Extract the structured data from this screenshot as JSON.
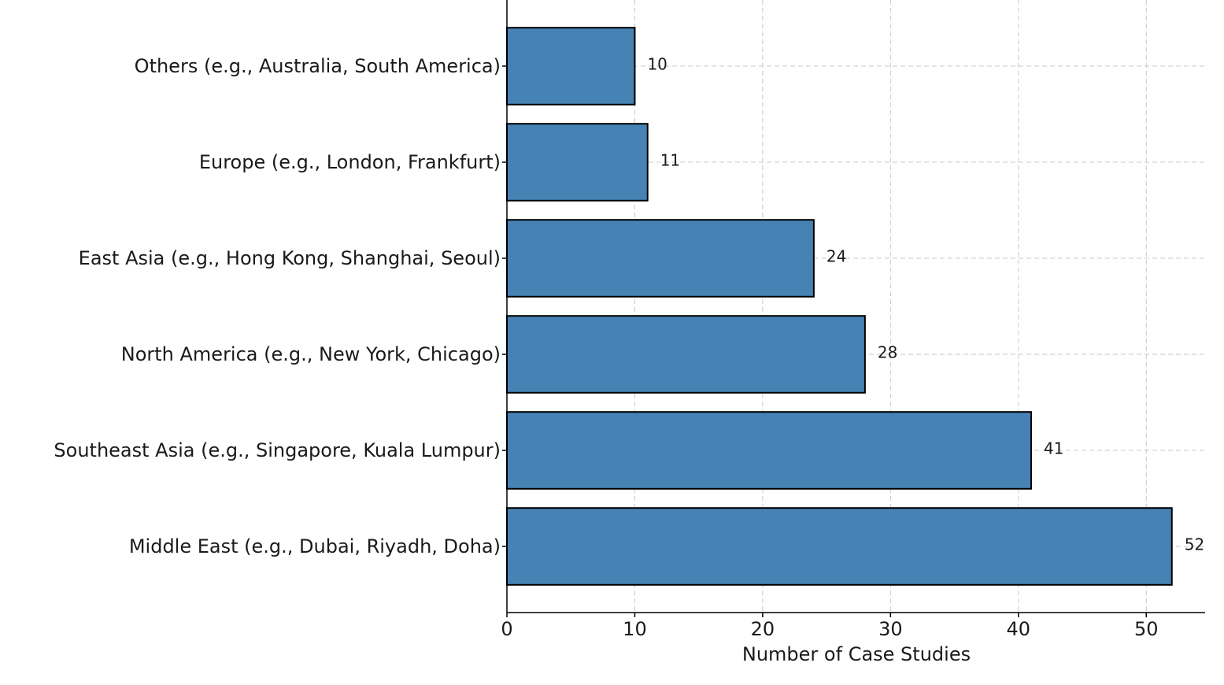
{
  "chart_data": {
    "type": "barh",
    "xlabel": "Number of Case Studies",
    "categories": [
      "Others (e.g., Australia, South America)",
      "Europe (e.g., London, Frankfurt)",
      "East Asia (e.g., Hong Kong, Shanghai, Seoul)",
      "North America (e.g., New York, Chicago)",
      "Southeast Asia (e.g., Singapore, Kuala Lumpur)",
      "Middle East (e.g., Dubai, Riyadh, Doha)"
    ],
    "values": [
      10,
      11,
      24,
      28,
      41,
      52
    ],
    "color": "#4682b4",
    "xlim": [
      0,
      54.6
    ],
    "xticks": [
      0,
      10,
      20,
      30,
      40,
      50
    ],
    "grid": true
  }
}
